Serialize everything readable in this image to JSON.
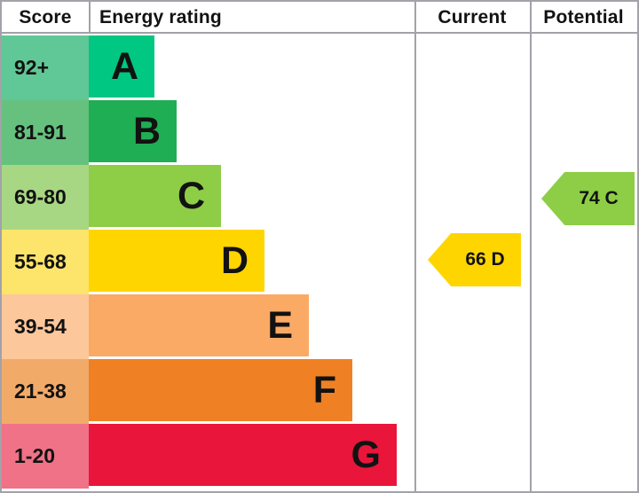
{
  "header": {
    "score": "Score",
    "energy_rating": "Energy rating",
    "current": "Current",
    "potential": "Potential"
  },
  "chart_data": {
    "type": "bar",
    "title": "Energy rating",
    "categories": [
      "A",
      "B",
      "C",
      "D",
      "E",
      "F",
      "G"
    ],
    "bands": [
      {
        "letter": "A",
        "score_range": "92+",
        "bar_color": "#00c781",
        "range_color": "#60c896"
      },
      {
        "letter": "B",
        "score_range": "81-91",
        "bar_color": "#1fae53",
        "range_color": "#66c17e"
      },
      {
        "letter": "C",
        "score_range": "69-80",
        "bar_color": "#8dce46",
        "range_color": "#a8d784"
      },
      {
        "letter": "D",
        "score_range": "55-68",
        "bar_color": "#ffd500",
        "range_color": "#fde46a"
      },
      {
        "letter": "E",
        "score_range": "39-54",
        "bar_color": "#fbaa66",
        "range_color": "#fbc79b"
      },
      {
        "letter": "F",
        "score_range": "21-38",
        "bar_color": "#ef8023",
        "range_color": "#f2aa69"
      },
      {
        "letter": "G",
        "score_range": "1-20",
        "bar_color": "#e9153b",
        "range_color": "#ef7287"
      }
    ],
    "current": {
      "label": "66 D",
      "value": 66,
      "band": "D",
      "color": "#ffd500"
    },
    "potential": {
      "label": "74 C",
      "value": 74,
      "band": "C",
      "color": "#8dce46"
    }
  }
}
